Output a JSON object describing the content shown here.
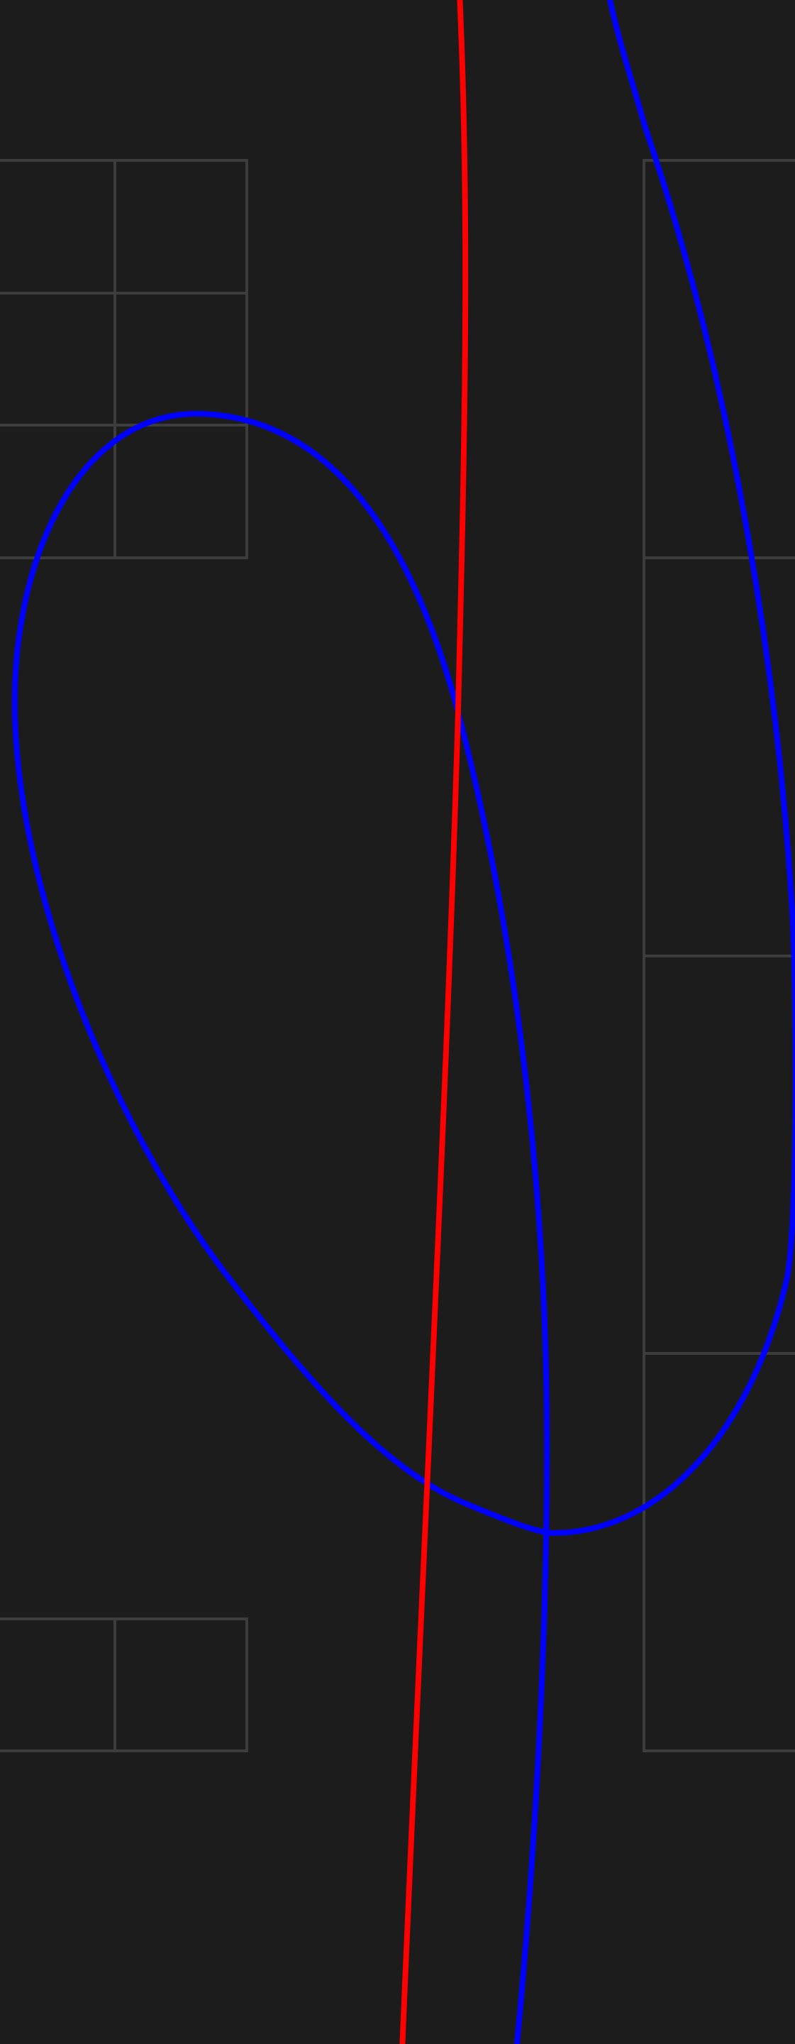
{
  "canvas": {
    "background": "#1c1c1c",
    "grid_color": "#3d3d3d",
    "curve_red": "#ff0000",
    "curve_blue": "#0000ff"
  }
}
